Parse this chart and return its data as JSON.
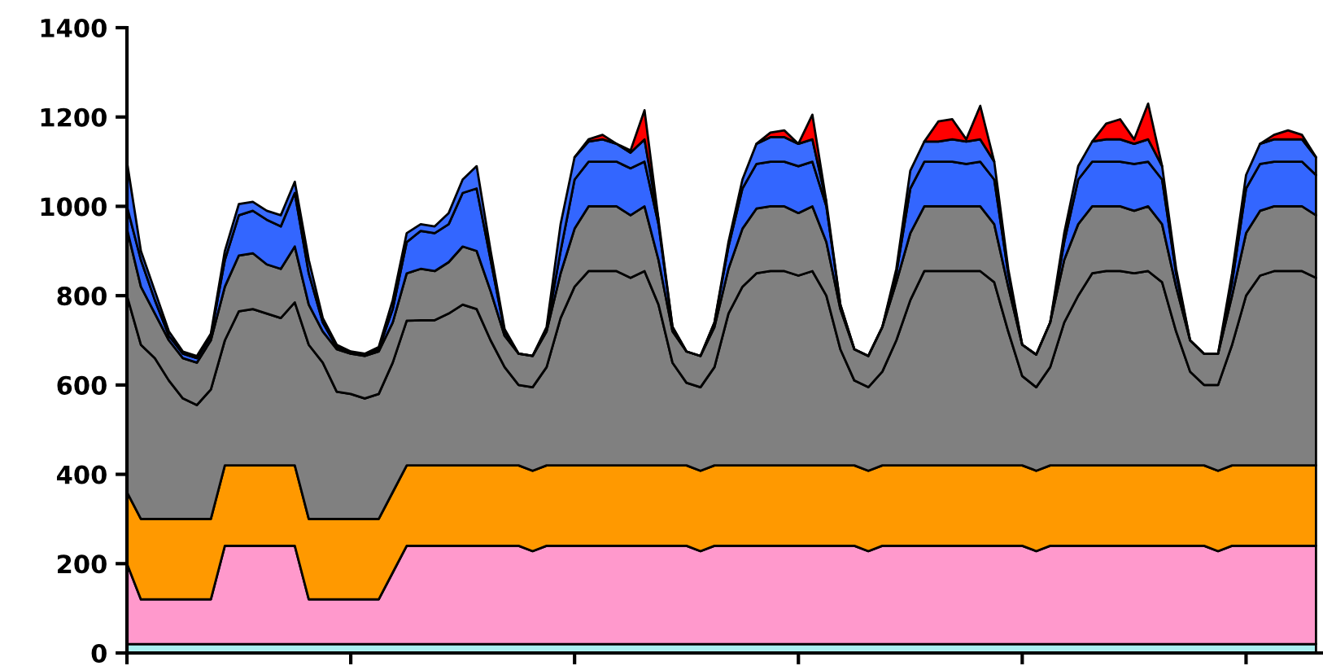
{
  "chart_data": {
    "type": "area",
    "stacked": true,
    "categories": [
      null,
      null,
      null,
      null,
      null,
      null,
      null,
      null,
      null,
      null,
      null,
      null,
      null,
      null,
      null,
      null,
      null,
      null,
      null,
      null,
      null,
      null,
      null,
      null,
      null,
      null,
      null,
      null,
      null,
      null,
      null,
      null,
      null,
      null,
      null,
      null,
      null,
      null,
      null,
      null,
      null,
      null,
      null,
      null,
      null,
      null,
      null,
      null,
      null,
      null,
      null,
      null,
      null,
      null,
      null,
      null,
      null,
      null,
      null,
      null,
      null,
      null,
      null,
      null,
      null,
      null,
      null,
      null,
      null,
      null,
      null,
      null,
      null,
      null,
      null,
      null,
      null,
      null,
      null,
      null,
      null,
      null,
      null,
      null,
      null,
      null
    ],
    "series": [
      {
        "color": "#aaf0f0",
        "values": [
          20,
          20,
          20,
          20,
          20,
          20,
          20,
          20,
          20,
          20,
          20,
          20,
          20,
          20,
          20,
          20,
          20,
          20,
          20,
          20,
          20,
          20,
          20,
          20,
          20,
          20,
          20,
          20,
          20,
          20,
          20,
          20,
          20,
          20,
          20,
          20,
          20,
          20,
          20,
          20,
          20,
          20,
          20,
          20,
          20,
          20,
          20,
          20,
          20,
          20,
          20,
          20,
          20,
          20,
          20,
          20,
          20,
          20,
          20,
          20,
          20,
          20,
          20,
          20,
          20,
          20,
          20,
          20,
          20,
          20,
          20,
          20,
          20,
          20,
          20,
          20,
          20,
          20,
          20,
          20,
          20,
          20,
          20,
          20,
          20,
          20
        ]
      },
      {
        "color": "#ff99cc",
        "values": [
          180,
          100,
          100,
          100,
          100,
          100,
          100,
          220,
          220,
          220,
          220,
          220,
          220,
          100,
          100,
          100,
          100,
          100,
          100,
          160,
          220,
          220,
          220,
          220,
          220,
          220,
          220,
          220,
          220,
          208,
          220,
          220,
          220,
          220,
          220,
          220,
          220,
          220,
          220,
          220,
          220,
          208,
          220,
          220,
          220,
          220,
          220,
          220,
          220,
          220,
          220,
          220,
          220,
          208,
          220,
          220,
          220,
          220,
          220,
          220,
          220,
          220,
          220,
          220,
          220,
          208,
          220,
          220,
          220,
          220,
          220,
          220,
          220,
          220,
          220,
          220,
          220,
          220,
          208,
          220,
          220,
          220,
          220,
          220,
          220,
          220
        ]
      },
      {
        "color": "#ff9900",
        "values": [
          160,
          180,
          180,
          180,
          180,
          180,
          180,
          180,
          180,
          180,
          180,
          180,
          180,
          180,
          180,
          180,
          180,
          180,
          180,
          180,
          180,
          180,
          180,
          180,
          180,
          180,
          180,
          180,
          180,
          180,
          180,
          180,
          180,
          180,
          180,
          180,
          180,
          180,
          180,
          180,
          180,
          180,
          180,
          180,
          180,
          180,
          180,
          180,
          180,
          180,
          180,
          180,
          180,
          180,
          180,
          180,
          180,
          180,
          180,
          180,
          180,
          180,
          180,
          180,
          180,
          180,
          180,
          180,
          180,
          180,
          180,
          180,
          180,
          180,
          180,
          180,
          180,
          180,
          180,
          180,
          180,
          180,
          180,
          180,
          180,
          180
        ]
      },
      {
        "color": "#808080",
        "values": [
          440,
          390,
          360,
          310,
          270,
          255,
          290,
          280,
          345,
          350,
          340,
          330,
          365,
          390,
          350,
          285,
          280,
          270,
          280,
          290,
          324,
          325,
          325,
          340,
          360,
          350,
          280,
          220,
          180,
          187,
          220,
          330,
          400,
          435,
          435,
          435,
          420,
          435,
          360,
          230,
          185,
          187,
          220,
          340,
          400,
          430,
          435,
          435,
          425,
          435,
          380,
          260,
          190,
          187,
          210,
          280,
          370,
          435,
          435,
          435,
          435,
          435,
          410,
          300,
          200,
          187,
          220,
          320,
          380,
          430,
          435,
          435,
          430,
          435,
          410,
          300,
          210,
          180,
          192,
          270,
          380,
          425,
          435,
          435,
          435,
          420
        ]
      },
      {
        "color": "#808080",
        "values": [
          150,
          130,
          100,
          90,
          90,
          95,
          110,
          120,
          125,
          125,
          110,
          110,
          125,
          90,
          70,
          95,
          90,
          95,
          95,
          90,
          106,
          115,
          110,
          115,
          130,
          130,
          110,
          70,
          70,
          70,
          80,
          100,
          130,
          145,
          145,
          145,
          140,
          145,
          100,
          70,
          70,
          70,
          90,
          100,
          130,
          145,
          145,
          145,
          140,
          145,
          120,
          90,
          70,
          70,
          100,
          130,
          150,
          145,
          145,
          145,
          145,
          145,
          130,
          100,
          70,
          73,
          100,
          140,
          160,
          150,
          145,
          145,
          140,
          145,
          130,
          100,
          70,
          70,
          70,
          110,
          140,
          145,
          145,
          145,
          145,
          140
        ]
      },
      {
        "color": "#3366ff",
        "values": [
          50,
          60,
          30,
          10,
          10,
          10,
          10,
          60,
          90,
          95,
          100,
          95,
          120,
          70,
          20,
          5,
          2,
          3,
          5,
          30,
          70,
          85,
          85,
          85,
          120,
          140,
          70,
          10,
          0,
          0,
          5,
          50,
          110,
          100,
          100,
          100,
          105,
          100,
          80,
          10,
          0,
          0,
          10,
          50,
          90,
          100,
          100,
          100,
          105,
          100,
          80,
          10,
          0,
          0,
          0,
          20,
          100,
          100,
          100,
          100,
          95,
          100,
          100,
          30,
          0,
          0,
          0,
          40,
          100,
          100,
          100,
          100,
          105,
          100,
          100,
          30,
          0,
          0,
          0,
          30,
          100,
          105,
          100,
          100,
          100,
          90
        ]
      },
      {
        "color": "#3a6cff",
        "values": [
          100,
          20,
          20,
          10,
          5,
          5,
          5,
          20,
          25,
          20,
          20,
          25,
          25,
          30,
          10,
          5,
          3,
          2,
          5,
          20,
          20,
          15,
          15,
          25,
          30,
          50,
          20,
          5,
          0,
          0,
          5,
          60,
          50,
          45,
          50,
          40,
          35,
          50,
          10,
          0,
          0,
          0,
          0,
          10,
          20,
          45,
          55,
          55,
          50,
          50,
          10,
          0,
          0,
          0,
          0,
          10,
          40,
          45,
          45,
          50,
          50,
          50,
          40,
          10,
          0,
          0,
          0,
          20,
          30,
          45,
          50,
          50,
          45,
          50,
          30,
          10,
          0,
          0,
          0,
          20,
          30,
          45,
          50,
          50,
          50,
          40
        ]
      },
      {
        "color": "#ff0000",
        "values": [
          null,
          null,
          null,
          null,
          null,
          null,
          null,
          null,
          null,
          null,
          null,
          null,
          null,
          null,
          null,
          null,
          null,
          null,
          null,
          null,
          null,
          null,
          null,
          null,
          null,
          null,
          null,
          null,
          null,
          null,
          null,
          null,
          0,
          5,
          10,
          0,
          5,
          65,
          0,
          null,
          null,
          null,
          null,
          null,
          null,
          0,
          10,
          15,
          0,
          55,
          0,
          null,
          null,
          null,
          null,
          null,
          null,
          0,
          45,
          45,
          5,
          75,
          0,
          null,
          null,
          null,
          null,
          null,
          null,
          0,
          35,
          45,
          10,
          80,
          0,
          null,
          null,
          null,
          null,
          null,
          null,
          0,
          10,
          20,
          10,
          0
        ]
      }
    ],
    "ylim": [
      0,
      1400
    ],
    "yticks": [
      0,
      200,
      400,
      600,
      800,
      1000,
      1200,
      1400
    ],
    "tick_labels": "y",
    "grid": false,
    "legend": false
  }
}
